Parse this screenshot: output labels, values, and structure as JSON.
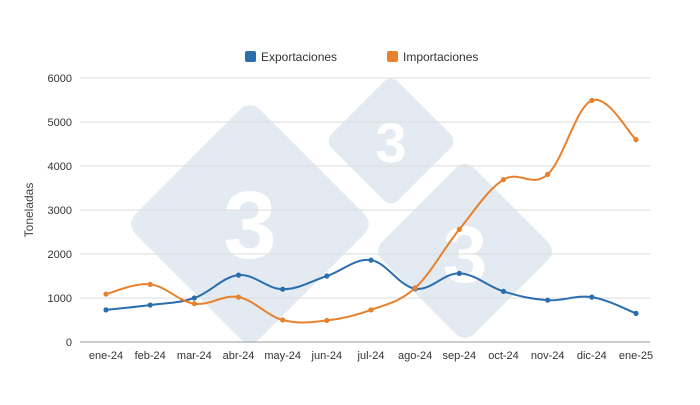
{
  "chart_data": {
    "type": "line",
    "categories": [
      "ene-24",
      "feb-24",
      "mar-24",
      "abr-24",
      "may-24",
      "jun-24",
      "jul-24",
      "ago-24",
      "sep-24",
      "oct-24",
      "nov-24",
      "dic-24",
      "ene-25"
    ],
    "series": [
      {
        "name": "Exportaciones",
        "color": "#2a6ead",
        "values": [
          730,
          840,
          1000,
          1520,
          1200,
          1500,
          1860,
          1210,
          1560,
          1150,
          950,
          1020,
          650
        ]
      },
      {
        "name": "Importaciones",
        "color": "#e8812d",
        "values": [
          1090,
          1310,
          870,
          1020,
          500,
          490,
          730,
          1230,
          2560,
          3690,
          3810,
          5490,
          4600
        ]
      }
    ],
    "title": "",
    "xlabel": "",
    "ylabel": "Toneladas",
    "ylim": [
      0,
      6000
    ],
    "yticks": [
      0,
      1000,
      2000,
      3000,
      4000,
      5000,
      6000
    ],
    "grid": true,
    "legend_position": "top"
  },
  "watermark": {
    "text": "3",
    "color": "#d4dfe9"
  }
}
